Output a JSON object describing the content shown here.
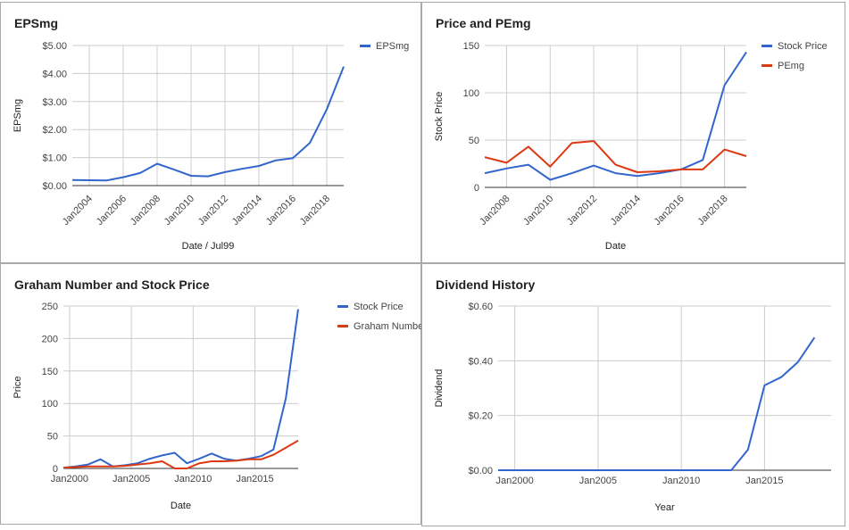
{
  "colors": {
    "blue": "#3366cc",
    "red": "#dc3912",
    "grid": "#cccccc",
    "axis": "#333333"
  },
  "chart_data": [
    {
      "type": "line",
      "title": "EPSmg",
      "xlabel": "Date / Jul99",
      "ylabel": "EPSmg",
      "x_ticks": [
        "Jan2004",
        "Jan2006",
        "Jan2008",
        "Jan2010",
        "Jan2012",
        "Jan2014",
        "Jan2016",
        "Jan2018"
      ],
      "y_ticks": [
        "$0.00",
        "$1.00",
        "$2.00",
        "$3.00",
        "$4.00",
        "$5.00"
      ],
      "xlim": [
        "2003-01",
        "2019-01"
      ],
      "ylim": [
        0,
        5
      ],
      "legend_position": "top-right",
      "series": [
        {
          "name": "EPSmg",
          "x": [
            "2003-01",
            "2004-01",
            "2005-01",
            "2006-01",
            "2007-01",
            "2008-01",
            "2009-01",
            "2010-01",
            "2011-01",
            "2012-01",
            "2013-01",
            "2014-01",
            "2015-01",
            "2016-01",
            "2017-01",
            "2018-01",
            "2019-01"
          ],
          "values": [
            0.2,
            0.19,
            0.18,
            0.3,
            0.45,
            0.78,
            0.57,
            0.35,
            0.33,
            0.48,
            0.6,
            0.7,
            0.9,
            0.98,
            1.52,
            2.72,
            4.25
          ]
        }
      ]
    },
    {
      "type": "line",
      "title": "Price and PEmg",
      "xlabel": "Date",
      "ylabel": "Stock Price",
      "x_ticks": [
        "Jan2008",
        "Jan2010",
        "Jan2012",
        "Jan2014",
        "Jan2016",
        "Jan2018"
      ],
      "y_ticks": [
        "0",
        "50",
        "100",
        "150"
      ],
      "xlim": [
        "2007-01",
        "2019-01"
      ],
      "ylim": [
        0,
        150
      ],
      "legend_position": "top-right",
      "series": [
        {
          "name": "Stock Price",
          "x": [
            "2007-01",
            "2008-01",
            "2009-01",
            "2010-01",
            "2011-01",
            "2012-01",
            "2013-01",
            "2014-01",
            "2015-01",
            "2016-01",
            "2017-01",
            "2018-01",
            "2019-01"
          ],
          "values": [
            15,
            20,
            24,
            8,
            15,
            23,
            15,
            12,
            15,
            19,
            29,
            108,
            143
          ]
        },
        {
          "name": "PEmg",
          "x": [
            "2007-01",
            "2008-01",
            "2009-01",
            "2010-01",
            "2011-01",
            "2012-01",
            "2013-01",
            "2014-01",
            "2015-01",
            "2016-01",
            "2017-01",
            "2018-01",
            "2019-01"
          ],
          "values": [
            32,
            26,
            43,
            22,
            47,
            49,
            24,
            16,
            17,
            19,
            19,
            40,
            33
          ]
        }
      ]
    },
    {
      "type": "line",
      "title": "Graham Number and Stock Price",
      "xlabel": "Date",
      "ylabel": "Price",
      "x_ticks": [
        "Jan2000",
        "Jan2005",
        "Jan2010",
        "Jan2015"
      ],
      "y_ticks": [
        "0",
        "50",
        "100",
        "150",
        "200",
        "250"
      ],
      "xlim": [
        "1999-07",
        "2018-07"
      ],
      "ylim": [
        0,
        250
      ],
      "legend_position": "top-right",
      "series": [
        {
          "name": "Stock Price",
          "x": [
            "1999-07",
            "2000-07",
            "2001-07",
            "2002-07",
            "2003-07",
            "2004-07",
            "2005-07",
            "2006-07",
            "2007-07",
            "2008-07",
            "2009-07",
            "2010-07",
            "2011-07",
            "2012-07",
            "2013-07",
            "2014-07",
            "2015-07",
            "2016-07",
            "2017-07",
            "2018-07"
          ],
          "values": [
            1,
            3,
            6,
            14,
            3,
            5,
            8,
            15,
            20,
            24,
            8,
            15,
            23,
            15,
            12,
            15,
            19,
            29,
            108,
            245
          ]
        },
        {
          "name": "Graham Number",
          "x": [
            "1999-07",
            "2000-07",
            "2001-07",
            "2002-07",
            "2003-07",
            "2004-07",
            "2005-07",
            "2006-07",
            "2007-07",
            "2008-07",
            "2009-07",
            "2010-07",
            "2011-07",
            "2012-07",
            "2013-07",
            "2014-07",
            "2015-07",
            "2016-07",
            "2017-07",
            "2018-07"
          ],
          "values": [
            1,
            2,
            3,
            3,
            3,
            4,
            6,
            8,
            11,
            0,
            0,
            8,
            11,
            11,
            12,
            14,
            14,
            21,
            32,
            43
          ]
        }
      ]
    },
    {
      "type": "line",
      "title": "Dividend History",
      "xlabel": "Year",
      "ylabel": "Dividend",
      "x_ticks": [
        "Jan2000",
        "Jan2005",
        "Jan2010",
        "Jan2015"
      ],
      "y_ticks": [
        "$0.00",
        "$0.20",
        "$0.40",
        "$0.60"
      ],
      "xlim": [
        "1999-01",
        "2019-01"
      ],
      "ylim": [
        0,
        0.6
      ],
      "legend_position": "none",
      "series": [
        {
          "name": "",
          "x": [
            "1999-01",
            "2000-01",
            "2001-01",
            "2002-01",
            "2003-01",
            "2004-01",
            "2005-01",
            "2006-01",
            "2007-01",
            "2008-01",
            "2009-01",
            "2010-01",
            "2011-01",
            "2012-01",
            "2013-01",
            "2014-01",
            "2015-01",
            "2016-01",
            "2017-01",
            "2018-01"
          ],
          "values": [
            0,
            0,
            0,
            0,
            0,
            0,
            0,
            0,
            0,
            0,
            0,
            0,
            0,
            0,
            0,
            0.075,
            0.31,
            0.34,
            0.395,
            0.485
          ]
        }
      ]
    }
  ]
}
